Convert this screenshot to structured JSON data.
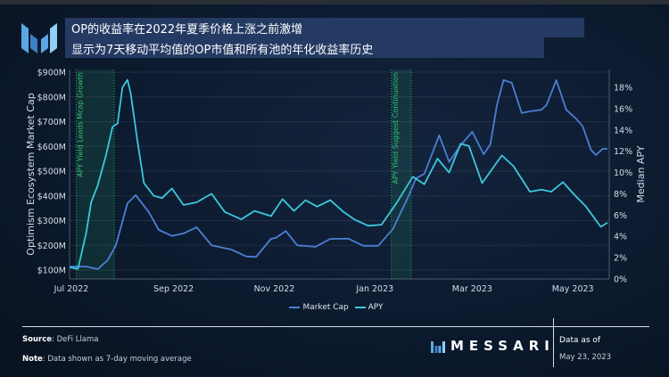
{
  "header": {
    "title": "OP的收益率在2022年夏季价格上涨之前激增",
    "subtitle": "显示为7天移动平均值的OP市值和所有池的年化收益率历史",
    "logo": "Messari"
  },
  "footer": {
    "source_label": "Source",
    "source_value": "DeFi Llama",
    "note_label": "Note",
    "note_value": "Data shown as 7-day moving average",
    "brand": "MESSARI",
    "data_as_of_label": "Data as of",
    "data_as_of_date": "May 23, 2023"
  },
  "colors": {
    "market_cap": "#4a7fd4",
    "apy": "#3cc8dc",
    "annotation": "#2fbf71",
    "background": "#0c1a2e"
  },
  "chart_data": {
    "type": "line",
    "title": "",
    "xlabel": "",
    "ylabel": "Optimism Ecosystem Market Cap",
    "y2label": "Median APY",
    "x_ticks": [
      "Jul 2022",
      "Sep 2022",
      "Nov 2022",
      "Jan 2023",
      "Mar 2023",
      "May 2023"
    ],
    "x_tick_dates": [
      "2022-07-01",
      "2022-09-01",
      "2022-11-01",
      "2023-01-01",
      "2023-03-01",
      "2023-05-01"
    ],
    "y_ticks": [
      "$100M",
      "$200M",
      "$300M",
      "$400M",
      "$500M",
      "$600M",
      "$700M",
      "$800M",
      "$900M"
    ],
    "y_tick_values": [
      100,
      200,
      300,
      400,
      500,
      600,
      700,
      800,
      900
    ],
    "y2_ticks": [
      "0%",
      "2%",
      "4%",
      "6%",
      "8%",
      "10%",
      "12%",
      "14%",
      "16%",
      "18%"
    ],
    "y2_tick_values": [
      0,
      2,
      4,
      6,
      8,
      10,
      12,
      14,
      16,
      18
    ],
    "xlim": [
      "2022-07-01",
      "2023-05-22"
    ],
    "ylim": [
      100,
      900
    ],
    "y2lim": [
      0,
      18
    ],
    "grid": true,
    "legend_position": "bottom",
    "annotations": [
      {
        "label": "APY Yield Leads Mcap Growth",
        "start": "2022-07-04",
        "end": "2022-07-27"
      },
      {
        "label": "APY Yield Suggest Continuation",
        "start": "2023-01-11",
        "end": "2023-01-23"
      }
    ],
    "series": [
      {
        "name": "Market Cap",
        "axis": "left",
        "unit": "$M",
        "points": [
          [
            "2022-06-30",
            114
          ],
          [
            "2022-07-10",
            114
          ],
          [
            "2022-07-17",
            104
          ],
          [
            "2022-07-23",
            140
          ],
          [
            "2022-07-26",
            175
          ],
          [
            "2022-07-28",
            200
          ],
          [
            "2022-08-04",
            370
          ],
          [
            "2022-08-09",
            403
          ],
          [
            "2022-08-17",
            334
          ],
          [
            "2022-08-23",
            262
          ],
          [
            "2022-08-31",
            238
          ],
          [
            "2022-09-07",
            248
          ],
          [
            "2022-09-15",
            273
          ],
          [
            "2022-09-24",
            200
          ],
          [
            "2022-10-06",
            183
          ],
          [
            "2022-10-15",
            155
          ],
          [
            "2022-10-21",
            153
          ],
          [
            "2022-10-30",
            226
          ],
          [
            "2022-11-02",
            230
          ],
          [
            "2022-11-08",
            258
          ],
          [
            "2022-11-15",
            200
          ],
          [
            "2022-11-26",
            194
          ],
          [
            "2022-12-05",
            226
          ],
          [
            "2022-12-16",
            227
          ],
          [
            "2022-12-25",
            198
          ],
          [
            "2023-01-03",
            198
          ],
          [
            "2023-01-12",
            267
          ],
          [
            "2023-01-21",
            393
          ],
          [
            "2023-01-26",
            471
          ],
          [
            "2023-01-31",
            489
          ],
          [
            "2023-02-09",
            645
          ],
          [
            "2023-02-15",
            537
          ],
          [
            "2023-02-22",
            604
          ],
          [
            "2023-03-01",
            659
          ],
          [
            "2023-03-08",
            568
          ],
          [
            "2023-03-12",
            608
          ],
          [
            "2023-03-16",
            767
          ],
          [
            "2023-03-20",
            868
          ],
          [
            "2023-03-25",
            857
          ],
          [
            "2023-03-31",
            735
          ],
          [
            "2023-04-06",
            743
          ],
          [
            "2023-04-12",
            748
          ],
          [
            "2023-04-15",
            767
          ],
          [
            "2023-04-21",
            868
          ],
          [
            "2023-04-27",
            748
          ],
          [
            "2023-05-03",
            712
          ],
          [
            "2023-05-07",
            681
          ],
          [
            "2023-05-12",
            586
          ],
          [
            "2023-05-15",
            565
          ],
          [
            "2023-05-19",
            590
          ],
          [
            "2023-05-22",
            590
          ]
        ]
      },
      {
        "name": "APY",
        "axis": "right",
        "unit": "%",
        "points": [
          [
            "2022-06-30",
            1.1
          ],
          [
            "2022-07-05",
            0.95
          ],
          [
            "2022-07-10",
            4.3
          ],
          [
            "2022-07-13",
            7.2
          ],
          [
            "2022-07-17",
            8.8
          ],
          [
            "2022-07-22",
            11.6
          ],
          [
            "2022-07-26",
            14.3
          ],
          [
            "2022-07-29",
            14.6
          ],
          [
            "2022-08-01",
            18.0
          ],
          [
            "2022-08-04",
            18.7
          ],
          [
            "2022-08-06",
            17.4
          ],
          [
            "2022-08-10",
            13.0
          ],
          [
            "2022-08-14",
            9.0
          ],
          [
            "2022-08-20",
            7.8
          ],
          [
            "2022-08-25",
            7.6
          ],
          [
            "2022-08-31",
            8.5
          ],
          [
            "2022-09-07",
            6.95
          ],
          [
            "2022-09-15",
            7.2
          ],
          [
            "2022-09-24",
            8.0
          ],
          [
            "2022-10-02",
            6.3
          ],
          [
            "2022-10-12",
            5.6
          ],
          [
            "2022-10-20",
            6.4
          ],
          [
            "2022-10-30",
            5.9
          ],
          [
            "2022-11-06",
            7.5
          ],
          [
            "2022-11-13",
            6.4
          ],
          [
            "2022-11-20",
            7.4
          ],
          [
            "2022-11-27",
            6.8
          ],
          [
            "2022-12-05",
            7.4
          ],
          [
            "2022-12-13",
            6.3
          ],
          [
            "2022-12-20",
            5.55
          ],
          [
            "2022-12-28",
            5.0
          ],
          [
            "2023-01-05",
            5.1
          ],
          [
            "2023-01-14",
            7.1
          ],
          [
            "2023-01-24",
            9.6
          ],
          [
            "2023-01-31",
            8.9
          ],
          [
            "2023-02-08",
            11.3
          ],
          [
            "2023-02-15",
            10.0
          ],
          [
            "2023-02-22",
            12.7
          ],
          [
            "2023-02-27",
            12.5
          ],
          [
            "2023-03-07",
            9.0
          ],
          [
            "2023-03-19",
            11.6
          ],
          [
            "2023-03-26",
            10.6
          ],
          [
            "2023-04-05",
            8.2
          ],
          [
            "2023-04-12",
            8.4
          ],
          [
            "2023-04-18",
            8.2
          ],
          [
            "2023-04-25",
            9.1
          ],
          [
            "2023-05-02",
            7.9
          ],
          [
            "2023-05-09",
            6.8
          ],
          [
            "2023-05-16",
            5.3
          ],
          [
            "2023-05-18",
            4.9
          ],
          [
            "2023-05-22",
            5.3
          ]
        ]
      }
    ]
  }
}
